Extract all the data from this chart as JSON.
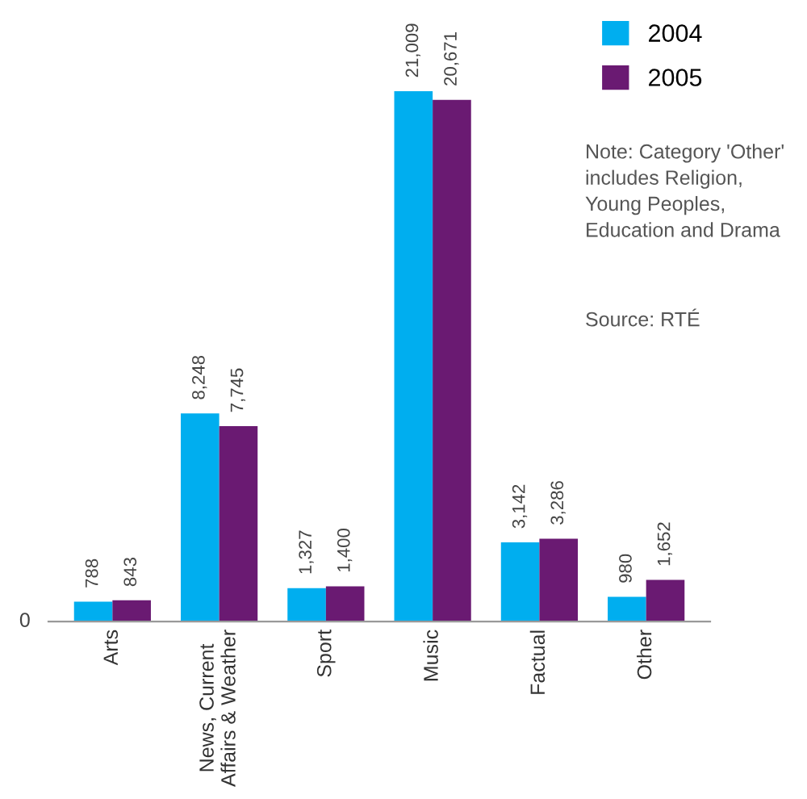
{
  "chart_data": {
    "type": "bar",
    "categories": [
      "Arts",
      "News, Current\nAffairs & Weather",
      "Sport",
      "Music",
      "Factual",
      "Other"
    ],
    "series": [
      {
        "name": "2004",
        "color": "#00aeef",
        "values": [
          788,
          8248,
          1327,
          21009,
          3142,
          980
        ],
        "value_labels": [
          "788",
          "8,248",
          "1,327",
          "21,009",
          "3,142",
          "980"
        ]
      },
      {
        "name": "2005",
        "color": "#6a1a72",
        "values": [
          843,
          7745,
          1400,
          20671,
          3286,
          1652
        ],
        "value_labels": [
          "843",
          "7,745",
          "1,400",
          "20,671",
          "3,286",
          "1,652"
        ]
      }
    ],
    "grid": false,
    "legend": "top right",
    "annotations": [
      "0",
      "Note: Category 'Other'\nincludes Religion,\nYoung Peoples,\nEducation and Drama",
      "Source: RTÉ"
    ]
  }
}
